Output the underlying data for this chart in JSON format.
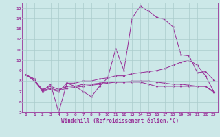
{
  "xlabel": "Windchill (Refroidissement éolien,°C)",
  "background_color": "#cce8e8",
  "line_color": "#993399",
  "grid_color": "#aacccc",
  "xlim": [
    -0.5,
    23.5
  ],
  "ylim": [
    5,
    15.5
  ],
  "yticks": [
    5,
    6,
    7,
    8,
    9,
    10,
    11,
    12,
    13,
    14,
    15
  ],
  "xticks": [
    0,
    1,
    2,
    3,
    4,
    5,
    6,
    7,
    8,
    9,
    10,
    11,
    12,
    13,
    14,
    15,
    16,
    17,
    18,
    19,
    20,
    21,
    22,
    23
  ],
  "series": [
    [
      8.6,
      8.2,
      7.0,
      7.7,
      5.0,
      7.8,
      7.5,
      7.0,
      6.5,
      7.5,
      8.3,
      11.1,
      9.0,
      14.0,
      15.2,
      14.7,
      14.1,
      13.9,
      13.2,
      10.5,
      10.4,
      8.8,
      8.9,
      8.1
    ],
    [
      8.6,
      8.2,
      7.0,
      7.2,
      7.0,
      7.8,
      7.8,
      8.0,
      8.0,
      8.2,
      8.3,
      8.5,
      8.5,
      8.7,
      8.8,
      8.9,
      9.0,
      9.2,
      9.5,
      9.8,
      10.0,
      9.5,
      8.5,
      7.0
    ],
    [
      8.6,
      8.1,
      7.2,
      7.5,
      7.2,
      7.5,
      7.5,
      7.7,
      7.7,
      7.8,
      7.9,
      7.9,
      7.9,
      7.9,
      7.9,
      7.7,
      7.5,
      7.5,
      7.5,
      7.5,
      7.5,
      7.5,
      7.5,
      7.0
    ],
    [
      8.6,
      8.0,
      7.1,
      7.3,
      7.1,
      7.3,
      7.4,
      7.5,
      7.6,
      7.7,
      7.8,
      7.9,
      7.9,
      8.0,
      8.0,
      8.0,
      7.9,
      7.8,
      7.7,
      7.7,
      7.6,
      7.5,
      7.5,
      6.9
    ]
  ]
}
